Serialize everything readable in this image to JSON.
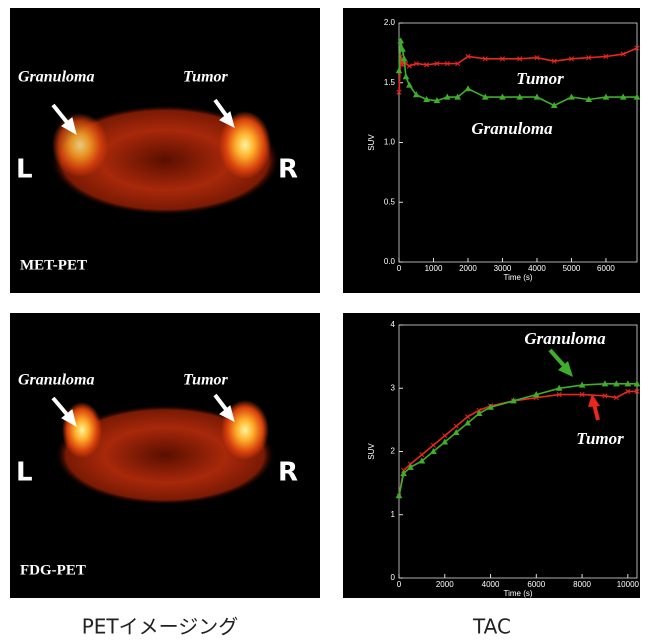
{
  "chart_data": [
    {
      "type": "line",
      "x": [
        0,
        50,
        100,
        150,
        200,
        300,
        500,
        800,
        1100,
        1400,
        1700,
        2000,
        2500,
        3000,
        3500,
        4000,
        4500,
        5000,
        5500,
        6000,
        6500,
        6900
      ],
      "xlim": [
        0,
        6900
      ],
      "xticks": [
        0,
        1000,
        2000,
        3000,
        4000,
        5000,
        6000
      ],
      "ylim": [
        0,
        2
      ],
      "yticks": [
        {
          "value": 0,
          "label": "0.0"
        },
        {
          "value": 0.5,
          "label": "0.5"
        },
        {
          "value": 1,
          "label": "1.0"
        },
        {
          "value": 1.5,
          "label": "1.5"
        },
        {
          "value": 2,
          "label": "2.0"
        }
      ],
      "xlabel": "Time (s)",
      "ylabel": "SUV",
      "series": [
        {
          "name": "Tumor",
          "color": "#e8271e",
          "values": [
            1.42,
            1.72,
            1.65,
            1.68,
            1.66,
            1.64,
            1.66,
            1.65,
            1.66,
            1.66,
            1.66,
            1.72,
            1.7,
            1.7,
            1.7,
            1.71,
            1.68,
            1.7,
            1.71,
            1.72,
            1.74,
            1.79
          ]
        },
        {
          "name": "Granuloma",
          "color": "#3fae2a",
          "values": [
            1.6,
            1.85,
            1.78,
            1.7,
            1.55,
            1.48,
            1.4,
            1.36,
            1.35,
            1.38,
            1.38,
            1.45,
            1.38,
            1.38,
            1.38,
            1.38,
            1.31,
            1.38,
            1.36,
            1.38,
            1.38,
            1.38
          ]
        }
      ]
    },
    {
      "type": "line",
      "x": [
        0,
        200,
        500,
        1000,
        1500,
        2000,
        2500,
        3000,
        3500,
        4000,
        5000,
        6000,
        7000,
        8000,
        9000,
        9500,
        10000,
        10400
      ],
      "xlim": [
        0,
        10400
      ],
      "xticks": [
        0,
        2000,
        4000,
        6000,
        8000,
        10000
      ],
      "ylim": [
        0,
        4
      ],
      "yticks": [
        0,
        1,
        2,
        3,
        4
      ],
      "xlabel": "Time (s)",
      "ylabel": "SUV",
      "series": [
        {
          "name": "Tumor",
          "color": "#e8271e",
          "values": [
            1.3,
            1.7,
            1.8,
            1.95,
            2.1,
            2.25,
            2.4,
            2.55,
            2.65,
            2.72,
            2.8,
            2.85,
            2.9,
            2.9,
            2.88,
            2.85,
            2.95,
            2.95
          ]
        },
        {
          "name": "Granuloma",
          "color": "#3fae2a",
          "values": [
            1.3,
            1.65,
            1.75,
            1.85,
            2.0,
            2.15,
            2.3,
            2.45,
            2.6,
            2.7,
            2.8,
            2.9,
            3.0,
            3.05,
            3.07,
            3.07,
            3.07,
            3.07
          ]
        }
      ]
    }
  ],
  "images": [
    {
      "labels": [
        "Granuloma",
        "Tumor",
        "L",
        "R"
      ],
      "modality": "MET-PET"
    },
    {
      "labels": [
        "Granuloma",
        "Tumor",
        "L",
        "R"
      ],
      "modality": "FDG-PET"
    }
  ],
  "captions": [
    "PETイメージング",
    "TAC"
  ]
}
